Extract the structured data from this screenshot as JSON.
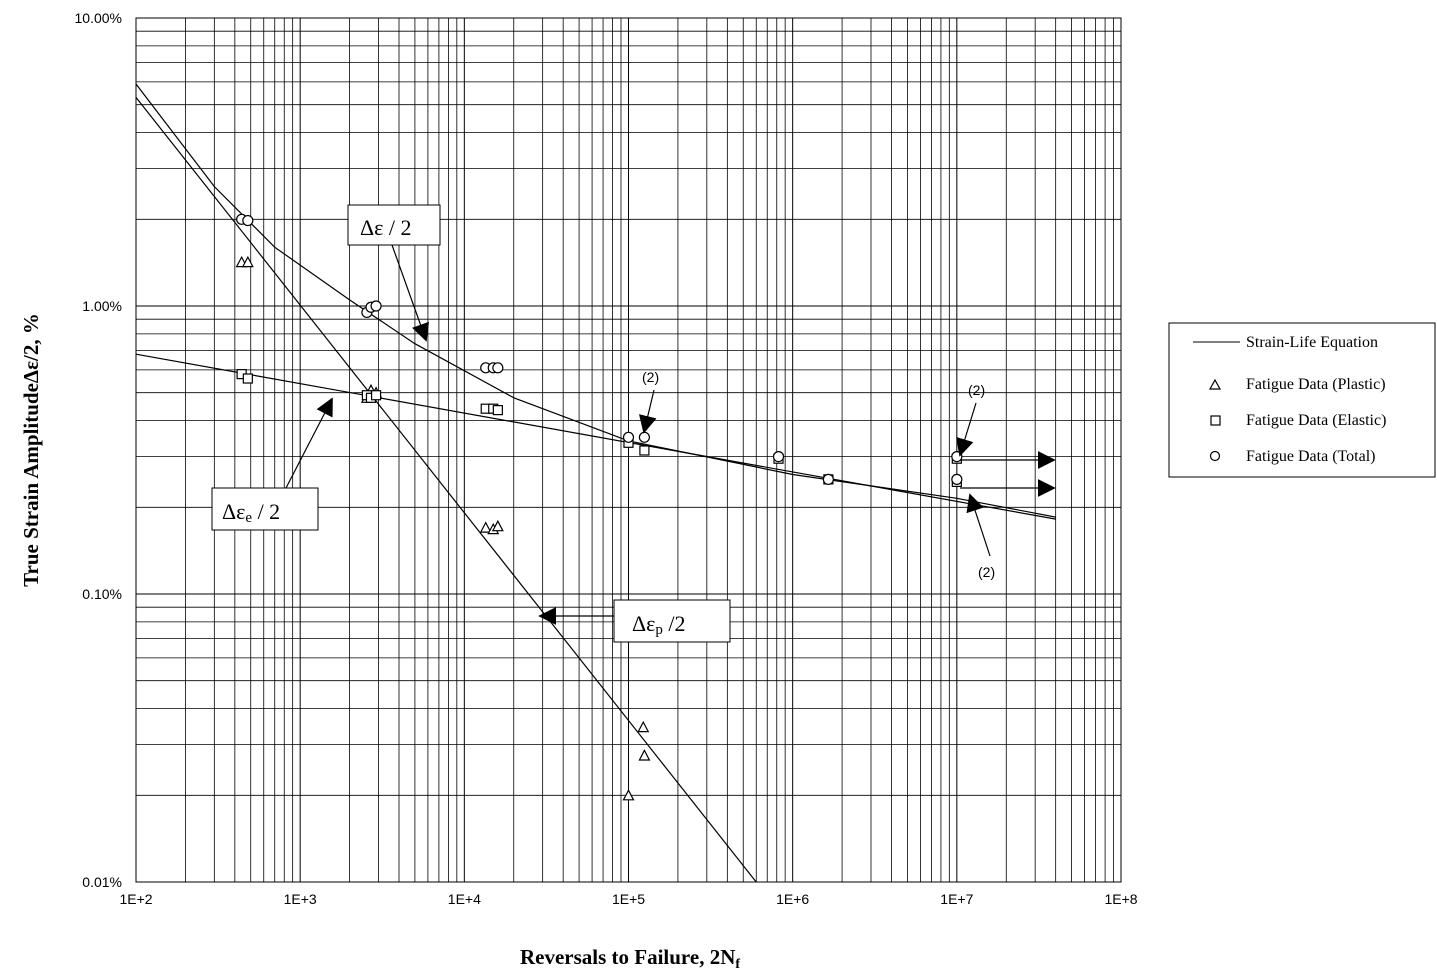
{
  "chart_data": {
    "type": "scatter",
    "xlabel": "Reversals to Failure, 2N",
    "xlabel_sub": "f",
    "ylabel": "True Strain Amplitude",
    "ylabel_symbol": "Δε",
    "ylabel_suffix": "/2, %",
    "x_scale": "log",
    "y_scale": "log",
    "xlim": [
      100,
      100000000
    ],
    "ylim": [
      0.01,
      10
    ],
    "x_tick_values": [
      100,
      1000,
      10000,
      100000,
      1000000,
      10000000,
      100000000
    ],
    "x_tick_labels": [
      "1E+2",
      "1E+3",
      "1E+4",
      "1E+5",
      "1E+6",
      "1E+7",
      "1E+8"
    ],
    "y_tick_values": [
      0.01,
      0.1,
      1,
      10
    ],
    "y_tick_labels": [
      "0.01%",
      "0.10%",
      "1.00%",
      "10.00%"
    ],
    "grid": true,
    "legend_position": "right",
    "lines": [
      {
        "name": "Strain-Life Equation",
        "component": "total",
        "points": [
          [
            100,
            5.9
          ],
          [
            300,
            2.6
          ],
          [
            700,
            1.6
          ],
          [
            2000,
            1.05
          ],
          [
            5000,
            0.74
          ],
          [
            20000,
            0.48
          ],
          [
            100000,
            0.34
          ],
          [
            1000000,
            0.26
          ],
          [
            10000000,
            0.215
          ],
          [
            40000000,
            0.185
          ]
        ]
      },
      {
        "name": "Strain-Life Equation",
        "component": "elastic",
        "points": [
          [
            100,
            0.68
          ],
          [
            40000000,
            0.182
          ]
        ]
      },
      {
        "name": "Strain-Life Equation",
        "component": "plastic",
        "points": [
          [
            100,
            5.3
          ],
          [
            600000,
            0.01
          ]
        ]
      }
    ],
    "series": [
      {
        "name": "Fatigue Data (Plastic)",
        "marker": "triangle",
        "points": [
          [
            440,
            1.42
          ],
          [
            480,
            1.42
          ],
          [
            2550,
            0.48
          ],
          [
            2700,
            0.51
          ],
          [
            2900,
            0.5
          ],
          [
            13500,
            0.17
          ],
          [
            15000,
            0.168
          ],
          [
            16000,
            0.172
          ],
          [
            100000,
            0.02
          ],
          [
            123000,
            0.0345
          ],
          [
            125000,
            0.0275
          ]
        ]
      },
      {
        "name": "Fatigue Data (Elastic)",
        "marker": "square",
        "points": [
          [
            440,
            0.58
          ],
          [
            480,
            0.56
          ],
          [
            2550,
            0.49
          ],
          [
            2700,
            0.48
          ],
          [
            2900,
            0.49
          ],
          [
            13500,
            0.44
          ],
          [
            15000,
            0.44
          ],
          [
            16000,
            0.435
          ],
          [
            100000,
            0.335
          ],
          [
            125000,
            0.315
          ],
          [
            820000,
            0.295
          ],
          [
            1650000,
            0.25
          ],
          [
            10000000,
            0.295
          ],
          [
            10000000,
            0.245
          ]
        ]
      },
      {
        "name": "Fatigue Data (Total)",
        "marker": "circle",
        "points": [
          [
            440,
            2.0
          ],
          [
            480,
            1.98
          ],
          [
            2550,
            0.95
          ],
          [
            2700,
            0.99
          ],
          [
            2900,
            1.0
          ],
          [
            13500,
            0.61
          ],
          [
            15000,
            0.61
          ],
          [
            16000,
            0.61
          ],
          [
            100000,
            0.35
          ],
          [
            125000,
            0.35
          ],
          [
            820000,
            0.3
          ],
          [
            1650000,
            0.25
          ],
          [
            10000000,
            0.3
          ],
          [
            10000000,
            0.25
          ]
        ]
      }
    ],
    "annotations": [
      {
        "text_symbol": "Δε",
        "text_sub": "",
        "text_suffix": " / 2"
      },
      {
        "text_symbol": "Δε",
        "text_sub": "e",
        "text_suffix": " / 2"
      },
      {
        "text_symbol": "Δε",
        "text_sub": "p",
        "text_suffix": " /2"
      }
    ],
    "runout_notes": [
      "(2)",
      "(2)",
      "(2)"
    ]
  },
  "colors": {
    "ink": "#000000",
    "grid": "#000000",
    "background": "#ffffff"
  }
}
